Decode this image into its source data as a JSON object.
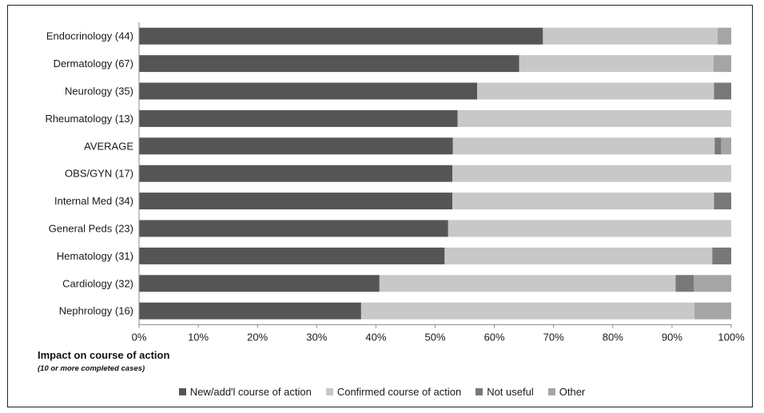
{
  "chart_data": {
    "type": "bar",
    "orientation": "horizontal",
    "stacked": true,
    "categories": [
      "Endocrinology (44)",
      "Dermatology (67)",
      "Neurology (35)",
      "Rheumatology (13)",
      "AVERAGE",
      "OBS/GYN (17)",
      "Internal Med (34)",
      "General Peds (23)",
      "Hematology (31)",
      "Cardiology (32)",
      "Nephrology (16)"
    ],
    "series": [
      {
        "name": "New/add'l course of action",
        "color": "#555555",
        "values": [
          68.2,
          64.2,
          57.1,
          53.8,
          53.0,
          52.9,
          52.9,
          52.2,
          51.6,
          40.6,
          37.5
        ]
      },
      {
        "name": "Confirmed course of action",
        "color": "#c8c8c8",
        "values": [
          29.5,
          32.8,
          40.0,
          46.2,
          44.2,
          47.1,
          44.2,
          47.8,
          45.2,
          50.0,
          56.3
        ]
      },
      {
        "name": "Not useful",
        "color": "#787878",
        "values": [
          0,
          0,
          2.9,
          0,
          1.1,
          0,
          2.9,
          0,
          3.2,
          3.1,
          0
        ]
      },
      {
        "name": "Other",
        "color": "#a5a5a5",
        "values": [
          2.3,
          3.0,
          0,
          0,
          1.7,
          0,
          0,
          0,
          0,
          6.3,
          6.2
        ]
      }
    ],
    "xlim": [
      0,
      100
    ],
    "x_ticks": [
      "0%",
      "10%",
      "20%",
      "30%",
      "40%",
      "50%",
      "60%",
      "70%",
      "80%",
      "90%",
      "100%"
    ],
    "title": "Impact on course of action",
    "subtitle": "(10 or more completed cases)",
    "legend_position": "bottom",
    "grid": false
  }
}
